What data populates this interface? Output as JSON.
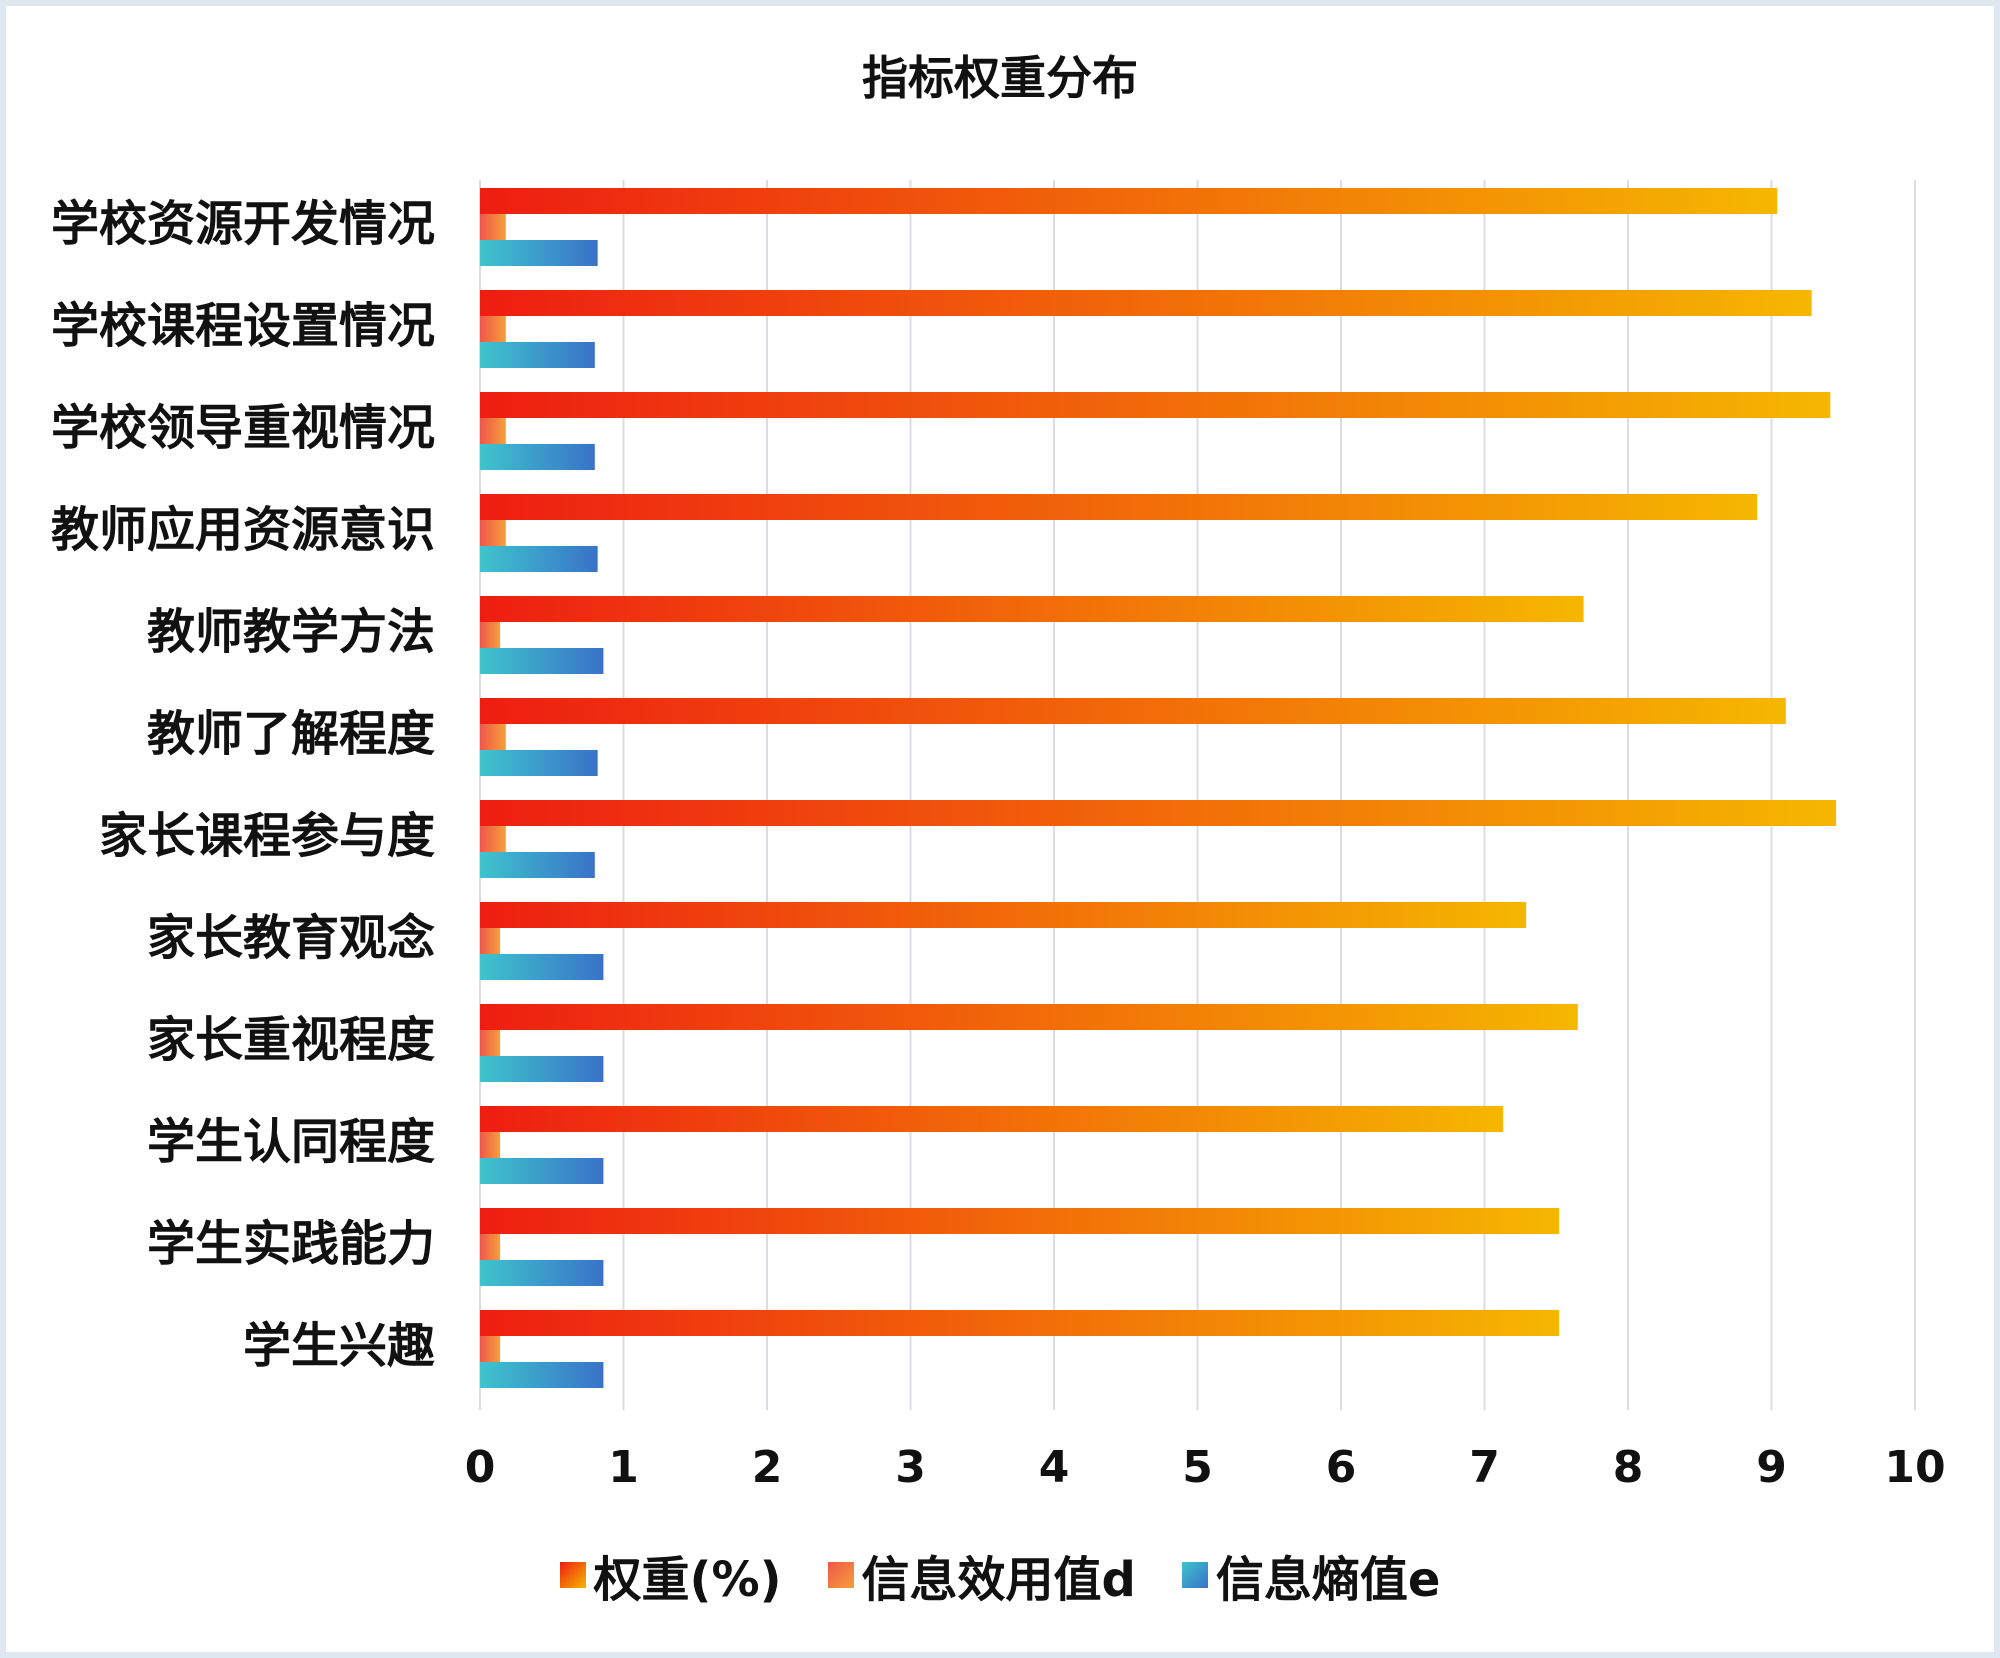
{
  "chart_data": {
    "type": "bar",
    "orientation": "horizontal",
    "title": "指标权重分布",
    "xlabel": "",
    "ylabel": "",
    "xlim": [
      0,
      10
    ],
    "x_ticks": [
      "0",
      "1",
      "2",
      "3",
      "4",
      "5",
      "6",
      "7",
      "8",
      "9",
      "10"
    ],
    "grid": true,
    "legend_position": "bottom",
    "categories": [
      "学校资源开发情况",
      "学校课程设置情况",
      "学校领导重视情况",
      "教师应用资源意识",
      "教师教学方法",
      "教师了解程度",
      "家长课程参与度",
      "家长教育观念",
      "家长重视程度",
      "学生认同程度",
      "学生实践能力",
      "学生兴趣"
    ],
    "series": [
      {
        "name": "权重(%)",
        "colors": [
          "#ee1d12",
          "#f5b700"
        ],
        "values": [
          9.04,
          9.28,
          9.41,
          8.9,
          7.69,
          9.1,
          9.45,
          7.29,
          7.65,
          7.13,
          7.52,
          7.52
        ]
      },
      {
        "name": "信息效用值d",
        "colors": [
          "#f0564a",
          "#f5a03a"
        ],
        "values": [
          0.18,
          0.18,
          0.18,
          0.18,
          0.14,
          0.18,
          0.18,
          0.14,
          0.14,
          0.14,
          0.14,
          0.14
        ]
      },
      {
        "name": "信息熵值e",
        "colors": [
          "#3ec4cd",
          "#3a72c8"
        ],
        "values": [
          0.82,
          0.8,
          0.8,
          0.82,
          0.86,
          0.82,
          0.8,
          0.86,
          0.86,
          0.86,
          0.86,
          0.86
        ]
      }
    ]
  }
}
